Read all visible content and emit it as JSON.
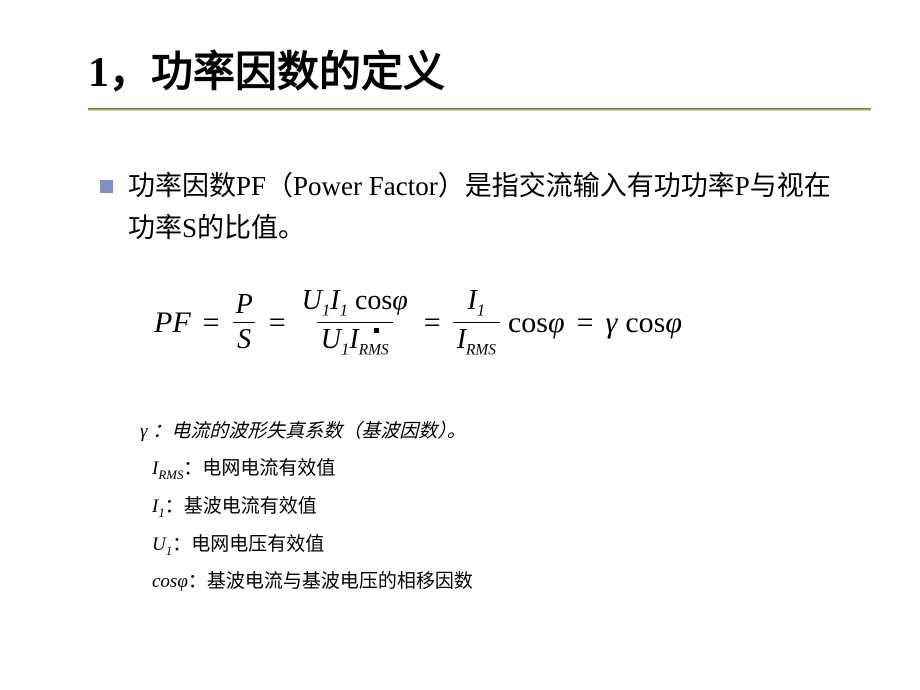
{
  "title": "1，功率因数的定义",
  "intro": "功率因数PF（Power  Factor）是指交流输入有功功率P与视在功率S的比值。",
  "formula": {
    "pf": "PF",
    "eq": "=",
    "p": "P",
    "s": "S",
    "u1": "U",
    "i1": "I",
    "cos": "cos",
    "phi": "φ",
    "irms": "I",
    "rms": "RMS",
    "gamma": "γ",
    "sub1": "1"
  },
  "defs": {
    "gamma_line": "γ ：电流的波形失真系数（基波因数）。",
    "irms_sym": "I",
    "irms_sub": "RMS",
    "irms_txt": "：电网电流有效值",
    "i1_sym": "I",
    "i1_sub": "1",
    "i1_txt": "：基波电流有效值",
    "u1_sym": "U",
    "u1_sub": "1",
    "u1_txt": "：电网电压有效值",
    "cosphi_sym": "cosφ",
    "cosphi_txt": "：基波电流与基波电压的相移因数"
  },
  "colors": {
    "bullet": "#7d90c0",
    "underline_dark": "#7a7a44",
    "underline_light": "#d4d4a8",
    "text": "#000000",
    "bg": "#ffffff"
  }
}
